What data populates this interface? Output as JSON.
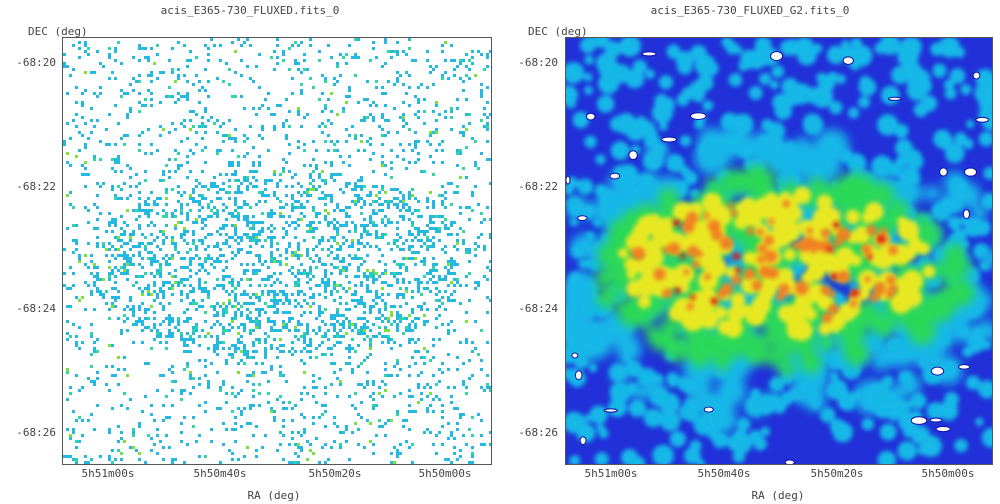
{
  "panels": {
    "left": {
      "title": "acis_E365-730_FLUXED.fits_0",
      "ylabel": "DEC (deg)",
      "xlabel": "RA (deg)",
      "yticks": [
        "-68:20",
        "-68:22",
        "-68:24",
        "-68:26"
      ],
      "xticks": [
        "5h51m00s",
        "5h50m40s",
        "5h50m20s",
        "5h50m00s"
      ],
      "image": "sparse-photon-event-map",
      "colors": {
        "primary": "#23b9e0",
        "secondary": "#2fd7a8",
        "accent": "#7be23c"
      }
    },
    "right": {
      "title": "acis_E365-730_FLUXED_G2.fits_0",
      "ylabel": "DEC (deg)",
      "xlabel": "RA (deg)",
      "yticks": [
        "-68:20",
        "-68:22",
        "-68:24",
        "-68:26"
      ],
      "xticks": [
        "5h51m00s",
        "5h50m40s",
        "5h50m20s",
        "5h50m00s"
      ],
      "image": "gaussian-smoothed-heatmap",
      "colors": {
        "low": "#2130d8",
        "mid": "#14b8e8",
        "green": "#2ad858",
        "yellow": "#e8e820",
        "orange": "#f08020",
        "high": "#d81818"
      }
    }
  }
}
